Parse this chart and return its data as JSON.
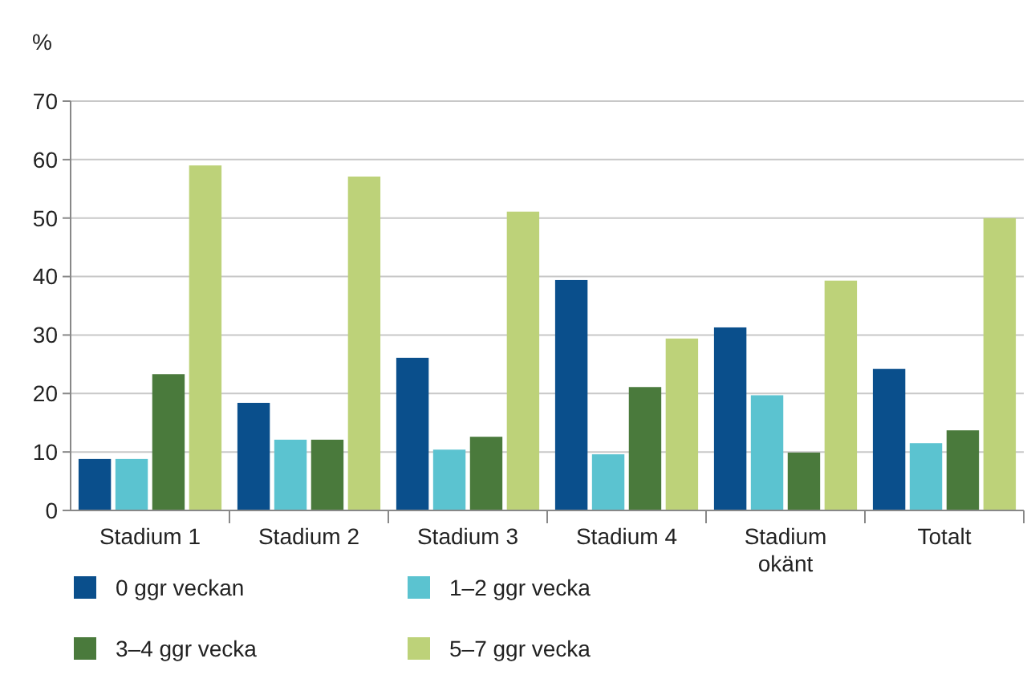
{
  "chart_data": {
    "type": "bar",
    "ylabel": "%",
    "categories": [
      "Stadium 1",
      "Stadium 2",
      "Stadium 3",
      "Stadium 4",
      "Stadium okänt",
      "Totalt"
    ],
    "series": [
      {
        "name": "0 ggr veckan",
        "color": "#0a4f8c",
        "values": [
          8.8,
          18.4,
          26.1,
          39.4,
          31.3,
          24.2
        ]
      },
      {
        "name": "1–2 ggr vecka",
        "color": "#5bc3d0",
        "values": [
          8.8,
          12.1,
          10.4,
          9.6,
          19.7,
          11.5
        ]
      },
      {
        "name": "3–4 ggr vecka",
        "color": "#4a7a3c",
        "values": [
          23.3,
          12.1,
          12.6,
          21.1,
          9.9,
          13.7
        ]
      },
      {
        "name": "5–7 ggr vecka",
        "color": "#bdd279",
        "values": [
          59,
          57.1,
          51.1,
          29.4,
          39.3,
          50
        ]
      }
    ],
    "ylim": [
      0,
      70
    ],
    "yticks": [
      0,
      10,
      20,
      30,
      40,
      50,
      60,
      70
    ],
    "grid": "y",
    "legend": "bottom"
  }
}
